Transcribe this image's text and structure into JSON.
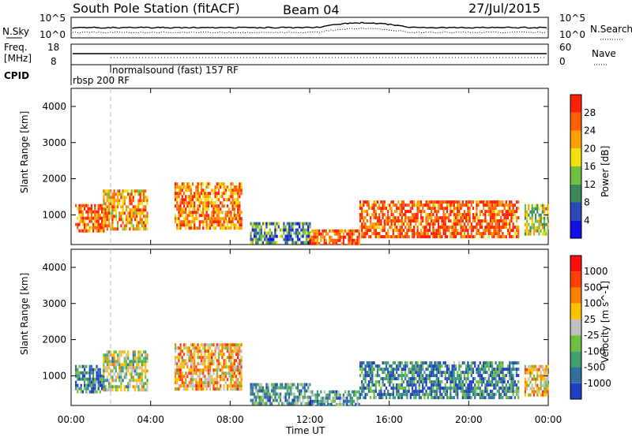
{
  "header": {
    "station": "South Pole Station (fitACF)",
    "beam": "Beam 04",
    "date": "27/Jul/2015"
  },
  "sky_panel": {
    "left_label": "N.Sky",
    "left_ticks": [
      "10^5",
      "10^0"
    ],
    "right_label": "N.Search",
    "right_ticks": [
      "10^5",
      "10^0"
    ]
  },
  "freq_panel": {
    "left_label_line1": "Freq.",
    "left_label_line2": "[MHz]",
    "left_ticks": [
      "18",
      "8"
    ],
    "right_label": "Nave",
    "right_ticks": [
      "60",
      "0"
    ]
  },
  "cpid": {
    "label": "CPID",
    "entries": [
      "normalsound (fast) 157 RF",
      "rbsp 200 RF"
    ]
  },
  "x_axis": {
    "label": "Time UT",
    "ticks": [
      "00:00",
      "04:00",
      "08:00",
      "12:00",
      "16:00",
      "20:00",
      "00:00"
    ]
  },
  "chart_data": [
    {
      "type": "heatmap",
      "panel": "power",
      "xlabel": "Time UT",
      "ylabel": "Slant Range [km]",
      "xlim": [
        0,
        24
      ],
      "ylim": [
        180,
        4500
      ],
      "yticks": [
        "1000",
        "2000",
        "3000",
        "4000"
      ],
      "colorbar": {
        "label": "Power [dB]",
        "ticks": [
          "4",
          "8",
          "12",
          "16",
          "20",
          "24",
          "28"
        ],
        "colors": [
          "#1010e0",
          "#2a4ab8",
          "#3a8a5a",
          "#70c040",
          "#f0e010",
          "#ffa000",
          "#ff6000",
          "#ff2000"
        ]
      },
      "regions": [
        {
          "t": [
            0.2,
            1.6
          ],
          "r": [
            600,
            1300
          ],
          "level": 0.8
        },
        {
          "t": [
            1.6,
            3.8
          ],
          "r": [
            600,
            1700
          ],
          "level": 0.7
        },
        {
          "t": [
            5.2,
            8.6
          ],
          "r": [
            600,
            1900
          ],
          "level": 0.75
        },
        {
          "t": [
            9.0,
            12.0
          ],
          "r": [
            200,
            800
          ],
          "level": 0.3
        },
        {
          "t": [
            12.0,
            14.5
          ],
          "r": [
            200,
            600
          ],
          "level": 0.85
        },
        {
          "t": [
            14.5,
            22.5
          ],
          "r": [
            400,
            1400
          ],
          "level": 0.85
        },
        {
          "t": [
            22.8,
            24.0
          ],
          "r": [
            500,
            1300
          ],
          "level": 0.5
        }
      ]
    },
    {
      "type": "heatmap",
      "panel": "velocity",
      "xlabel": "Time UT",
      "ylabel": "Slant Range [km]",
      "xlim": [
        0,
        24
      ],
      "ylim": [
        180,
        4500
      ],
      "yticks": [
        "1000",
        "2000",
        "3000",
        "4000"
      ],
      "colorbar": {
        "label": "Velocity [m s^-1]",
        "ticks": [
          "1000",
          "500",
          "100",
          "25",
          "-25",
          "-100",
          "-500",
          "-1000"
        ],
        "colors": [
          "#2040c0",
          "#3070a0",
          "#40a070",
          "#70c040",
          "#c0c0c0",
          "#ffc000",
          "#ff8000",
          "#ff4000",
          "#ff1010"
        ]
      },
      "regions": [
        {
          "t": [
            0.2,
            1.6
          ],
          "r": [
            600,
            1300
          ],
          "level": 0.2
        },
        {
          "t": [
            1.6,
            3.8
          ],
          "r": [
            600,
            1700
          ],
          "level": 0.45
        },
        {
          "t": [
            5.2,
            8.6
          ],
          "r": [
            600,
            1900
          ],
          "level": 0.65
        },
        {
          "t": [
            9.0,
            12.0
          ],
          "r": [
            200,
            800
          ],
          "level": 0.3
        },
        {
          "t": [
            12.0,
            14.5
          ],
          "r": [
            200,
            600
          ],
          "level": 0.3
        },
        {
          "t": [
            14.5,
            22.5
          ],
          "r": [
            400,
            1400
          ],
          "level": 0.2
        },
        {
          "t": [
            22.8,
            24.0
          ],
          "r": [
            500,
            1300
          ],
          "level": 0.6
        }
      ]
    }
  ]
}
